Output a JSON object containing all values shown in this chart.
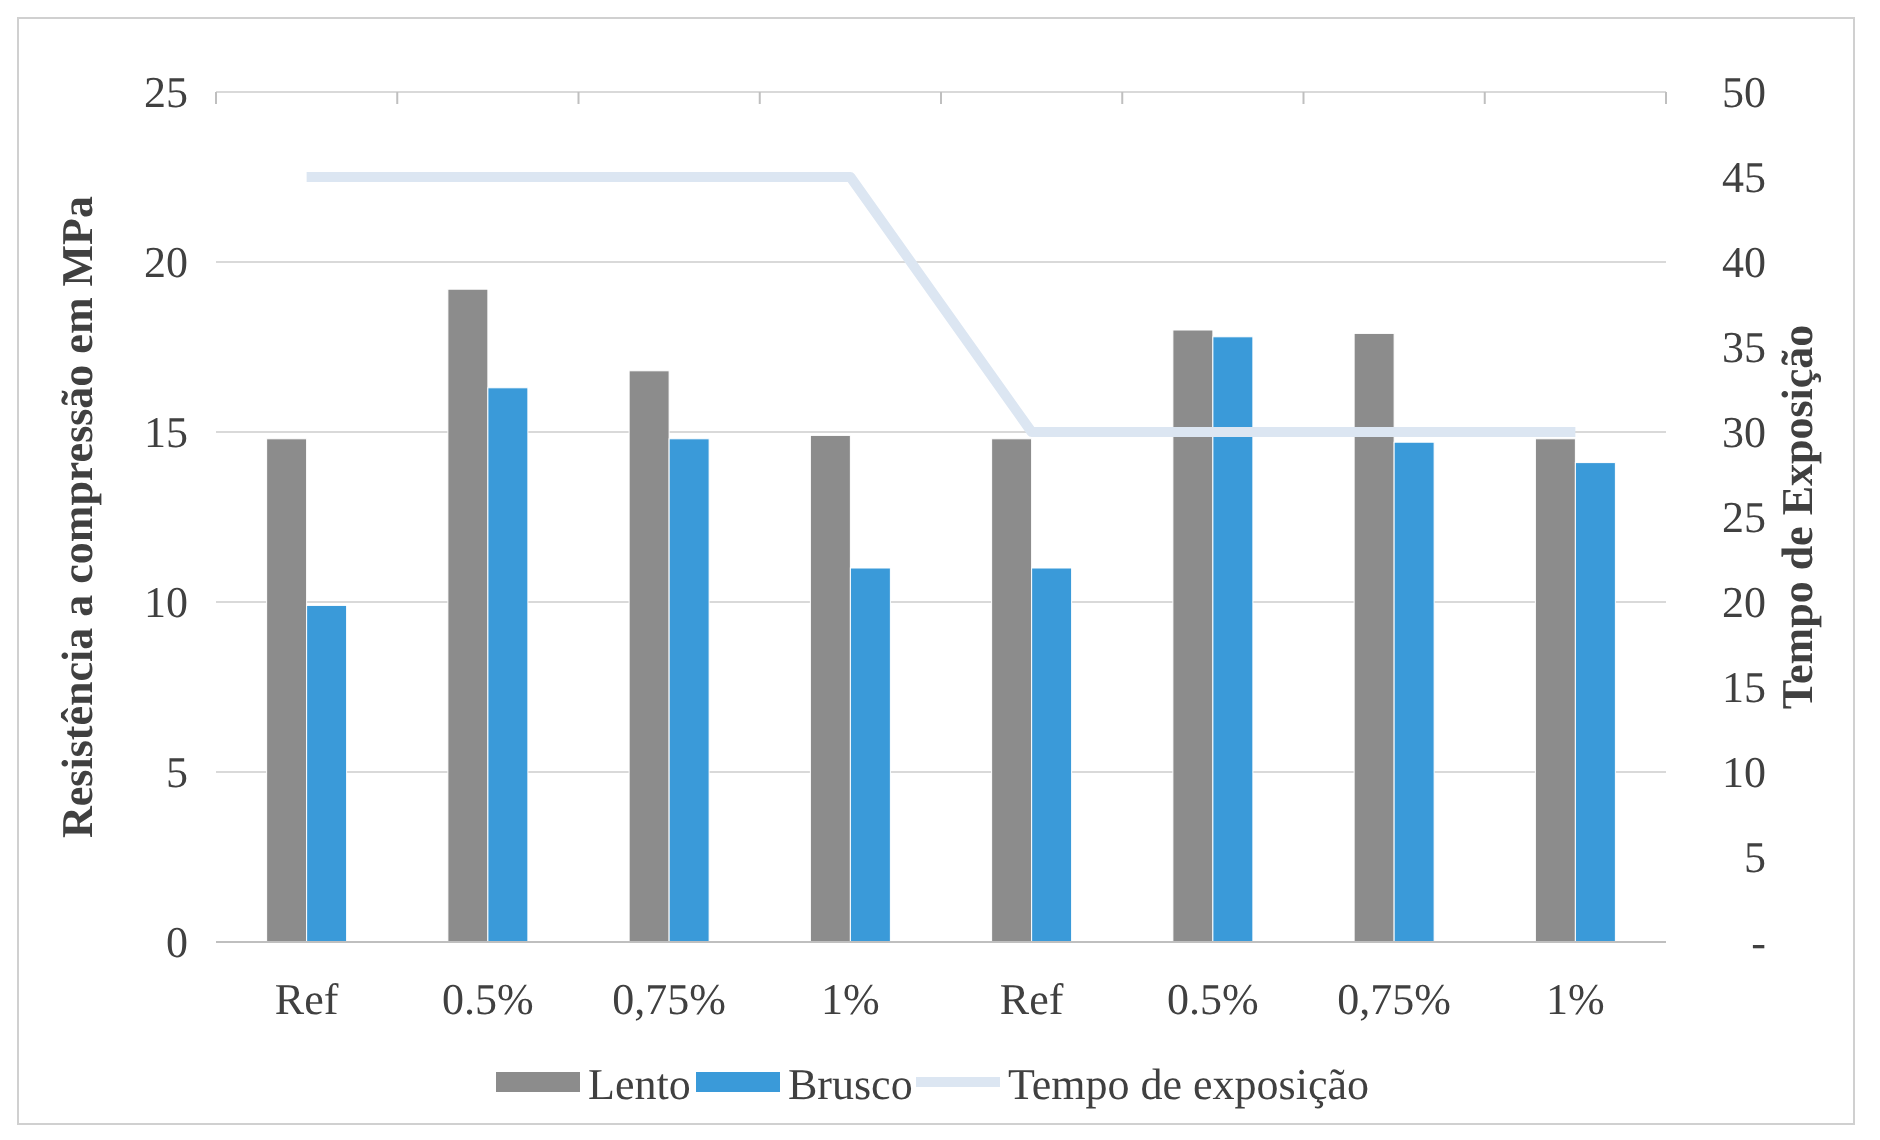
{
  "chart_data": {
    "type": "bar",
    "ylabel": "Resistência a compressão em MPa",
    "y2label": "Tempo de Exposição",
    "categories": [
      "Ref",
      "0.5%",
      "0,75%",
      "1%",
      "Ref",
      "0.5%",
      "0,75%",
      "1%"
    ],
    "series": [
      {
        "name": "Lento",
        "color": "#8c8c8c",
        "values": [
          14.8,
          19.2,
          16.8,
          14.9,
          14.8,
          18.0,
          17.9,
          14.8
        ]
      },
      {
        "name": "Brusco",
        "color": "#3a9ad9",
        "values": [
          9.9,
          16.3,
          14.8,
          11.0,
          11.0,
          17.8,
          14.7,
          14.1
        ]
      },
      {
        "name": "Tempo de exposição",
        "type": "line",
        "axis": "y2",
        "color": "#dce6f2",
        "values": [
          45,
          45,
          45,
          45,
          30,
          30,
          30,
          30
        ]
      }
    ],
    "ylim": [
      0,
      25
    ],
    "yticks": [
      0,
      5,
      10,
      15,
      20,
      25
    ],
    "y2lim": [
      0,
      50
    ],
    "y2ticks": [
      {
        "value": 0,
        "label": "-"
      },
      5,
      10,
      15,
      20,
      25,
      30,
      35,
      40,
      45,
      50
    ],
    "grid": "y",
    "legend": "bottom"
  }
}
